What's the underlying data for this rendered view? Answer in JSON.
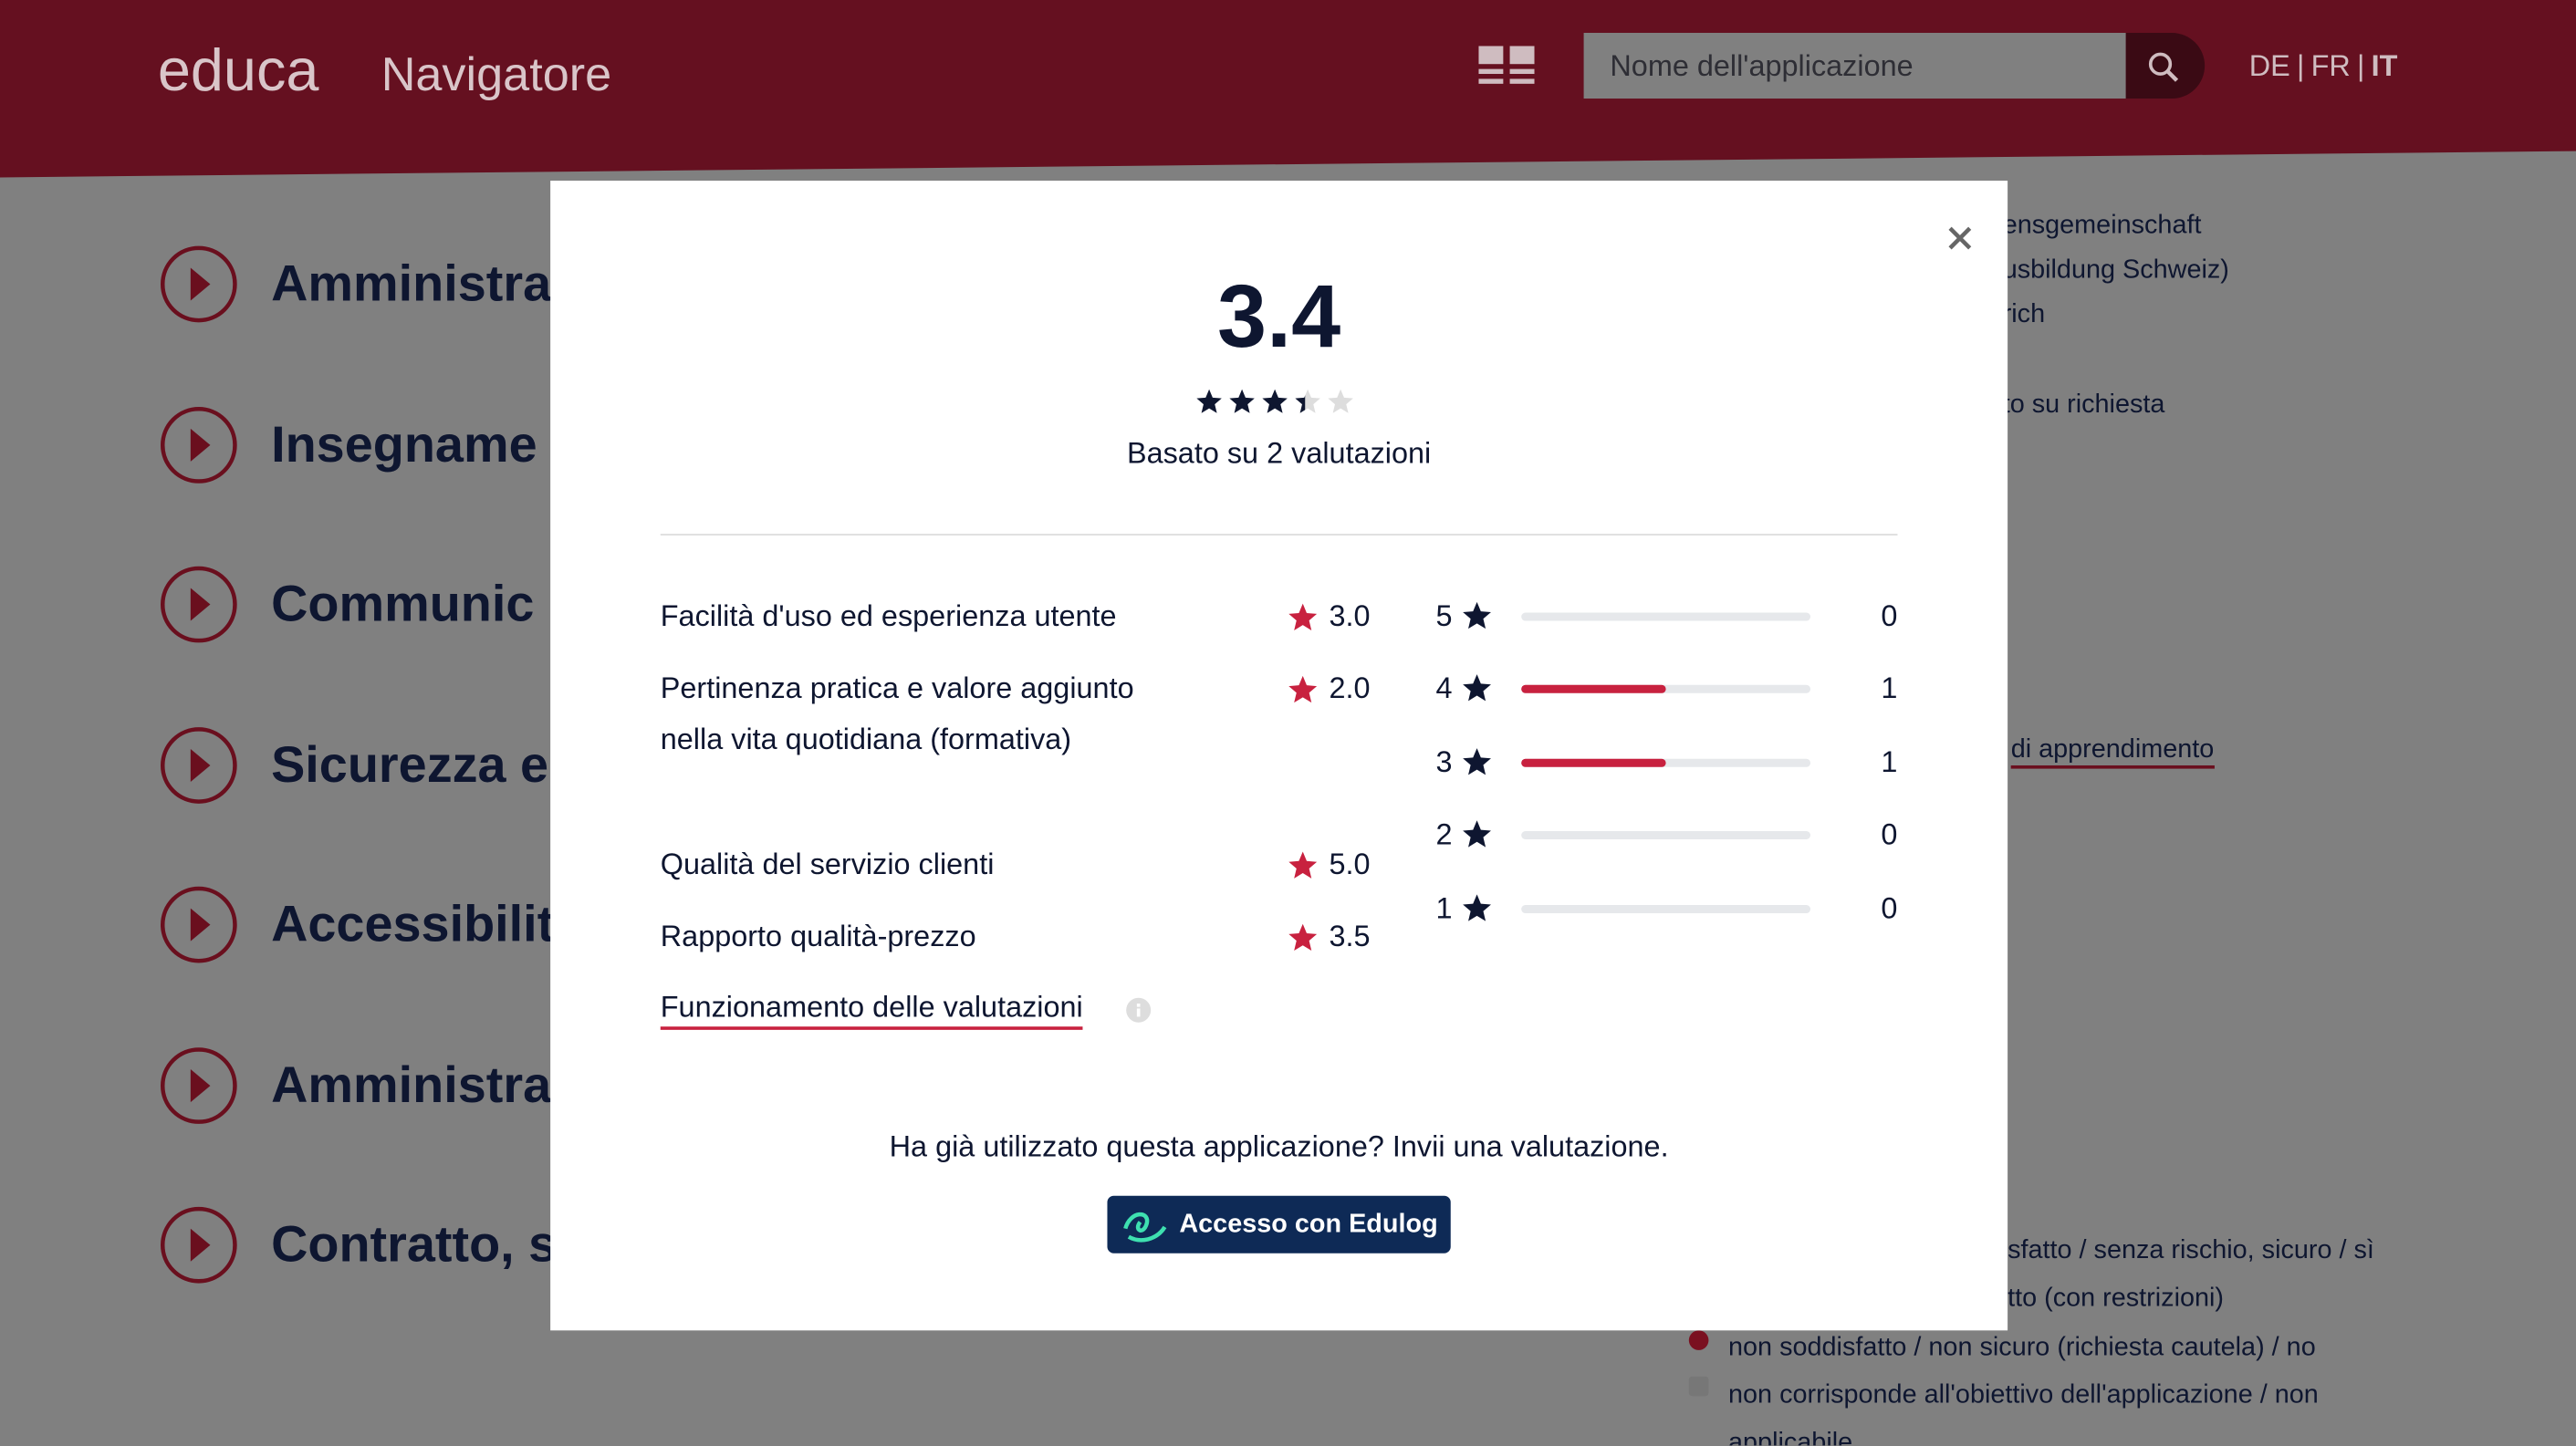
{
  "header": {
    "logo": "educa",
    "subtitle": "Navigatore",
    "search_placeholder": "Nome dell'applicazione",
    "languages": [
      "DE",
      "FR",
      "IT"
    ]
  },
  "background": {
    "categories": [
      "Amministra",
      "Insegname",
      "Communic",
      "Sicurezza e",
      "Accessibilit",
      "Amministra",
      "Contratto, s"
    ],
    "side_texts": [
      "ensgemeinschaft",
      "usbildung Schweiz)",
      "rich",
      "to su richiesta"
    ],
    "side_link": "di apprendimento",
    "legend": [
      "sfatto / senza rischio, sicuro / sì",
      "tto (con restrizioni)",
      "non soddisfatto / non sicuro (richiesta cautela) / no",
      "non corrisponde all'obiettivo dell'applicazione / non applicabile"
    ]
  },
  "modal": {
    "rating": 3.4,
    "based_on": "Basato su 2 valutazioni",
    "criteria": [
      {
        "label": "Facilità d'uso ed esperienza utente",
        "score": "3.0"
      },
      {
        "label": "Pertinenza pratica e valore aggiunto nella vita quotidiana (formativa)",
        "score": "2.0"
      },
      {
        "label": "Qualità del servizio clienti",
        "score": "5.0"
      },
      {
        "label": "Rapporto qualità-prezzo",
        "score": "3.5"
      }
    ],
    "distribution": [
      {
        "stars": 5,
        "count": 0
      },
      {
        "stars": 4,
        "count": 1
      },
      {
        "stars": 3,
        "count": 1
      },
      {
        "stars": 2,
        "count": 0
      },
      {
        "stars": 1,
        "count": 0
      }
    ],
    "info_link": "Funzionamento delle valutazioni",
    "prompt": "Ha già utilizzato questa applicazione? Invii una valutazione.",
    "login_button": "Accesso con Edulog"
  }
}
